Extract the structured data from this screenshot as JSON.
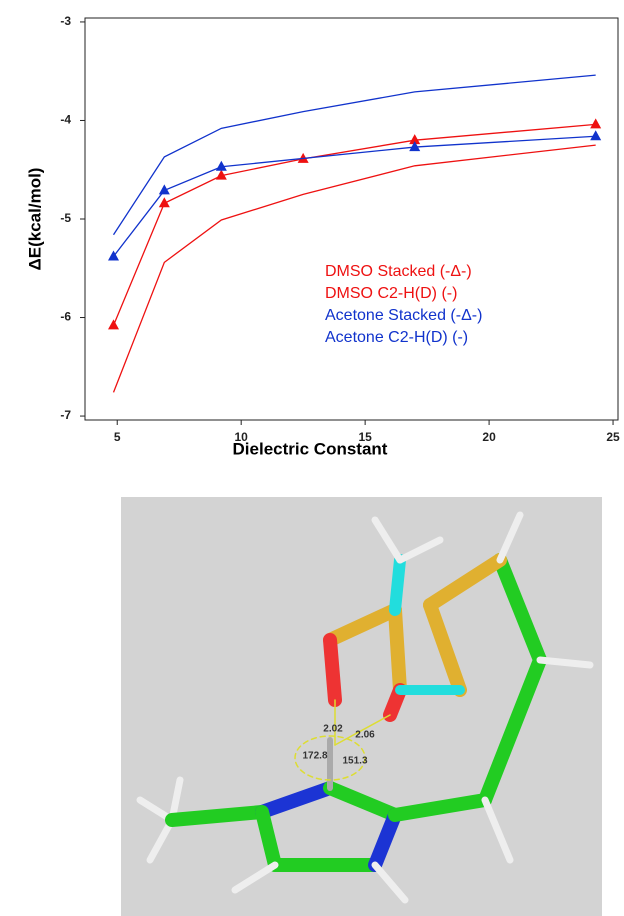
{
  "chart_data": {
    "type": "line",
    "x_label": "Dielectric Constant",
    "y_label": "ΔE(kcal/mol)",
    "xlim": [
      3.7,
      25.2
    ],
    "xticks": [
      5,
      10,
      15,
      20,
      25
    ],
    "ylim": [
      -7.04,
      -2.96
    ],
    "yticks": [
      -7,
      -6,
      -5,
      -4,
      -3
    ],
    "grid": false,
    "legend": "center",
    "series": [
      {
        "name": "DMSO Stacked (-Δ-)",
        "color": "#ee1111",
        "markers": true,
        "x": [
          4.85,
          6.9,
          9.2,
          12.5,
          17.0,
          24.3
        ],
        "values": [
          -6.08,
          -4.84,
          -4.56,
          -4.39,
          -4.2,
          -4.04
        ]
      },
      {
        "name": "DMSO C2-H(D) (-)",
        "color": "#ee1111",
        "markers": false,
        "x": [
          4.85,
          6.9,
          9.2,
          12.5,
          17.0,
          24.3
        ],
        "values": [
          -6.76,
          -5.44,
          -5.01,
          -4.75,
          -4.46,
          -4.25
        ]
      },
      {
        "name": "Acetone Stacked (-Δ-)",
        "color": "#1133cc",
        "markers": true,
        "x": [
          4.85,
          6.9,
          9.2,
          17.0,
          24.3
        ],
        "values": [
          -5.38,
          -4.71,
          -4.47,
          -4.27,
          -4.16
        ]
      },
      {
        "name": "Acetone C2-H(D) (-)",
        "color": "#1133cc",
        "markers": false,
        "x": [
          4.85,
          6.9,
          9.2,
          12.5,
          17.0,
          24.3
        ],
        "values": [
          -5.16,
          -4.37,
          -4.08,
          -3.91,
          -3.71,
          -3.54
        ]
      }
    ]
  },
  "structure": {
    "labels": [
      "2.02",
      "2.06",
      "172.8",
      "151.3"
    ]
  }
}
